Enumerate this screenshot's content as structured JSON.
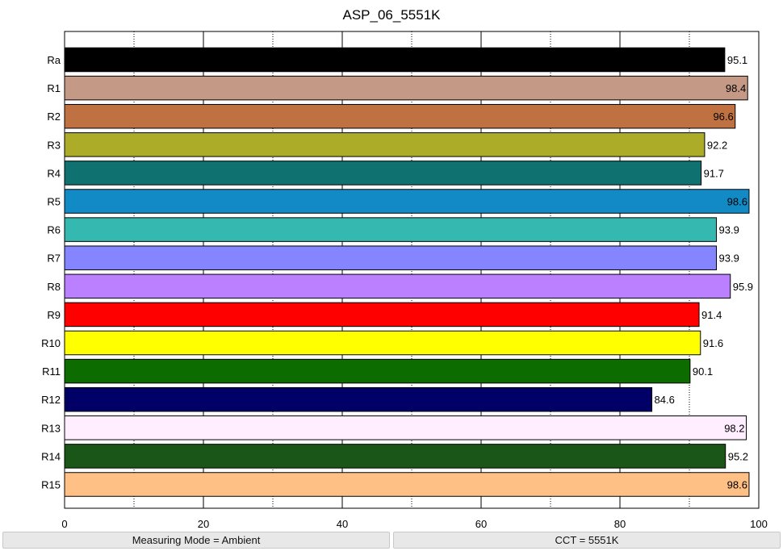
{
  "chart_data": {
    "type": "bar",
    "orientation": "horizontal",
    "title": "ASP_06_5551K",
    "categories": [
      "Ra",
      "R1",
      "R2",
      "R3",
      "R4",
      "R5",
      "R6",
      "R7",
      "R8",
      "R9",
      "R10",
      "R11",
      "R12",
      "R13",
      "R14",
      "R15"
    ],
    "values": [
      95.1,
      98.4,
      96.6,
      92.2,
      91.7,
      98.6,
      93.9,
      93.9,
      95.9,
      91.4,
      91.6,
      90.1,
      84.6,
      98.2,
      95.2,
      98.6
    ],
    "value_labels": [
      "95.1",
      "98.4",
      "96.6",
      "92.2",
      "91.7",
      "98.6",
      "93.9",
      "93.9",
      "95.9",
      "91.4",
      "91.6",
      "90.1",
      "84.6",
      "98.2",
      "95.2",
      "98.6"
    ],
    "colors": [
      "#000000",
      "#c49a86",
      "#bf7142",
      "#adac28",
      "#0f7270",
      "#128ac6",
      "#35b8b0",
      "#8585ff",
      "#bb80ff",
      "#ff0000",
      "#ffff00",
      "#0d6c00",
      "#000066",
      "#ffeeff",
      "#1a5618",
      "#ffc086"
    ],
    "xlim": [
      0,
      100
    ],
    "xticks": [
      0,
      20,
      40,
      60,
      80,
      100
    ],
    "xtick_labels": [
      "0",
      "20",
      "40",
      "60",
      "80",
      "100"
    ],
    "minor_gridlines": [
      10,
      30,
      50,
      70,
      90
    ],
    "grid": true
  },
  "footer": {
    "left_label": "Measuring Mode = Ambient",
    "right_label": "CCT = 5551K"
  }
}
